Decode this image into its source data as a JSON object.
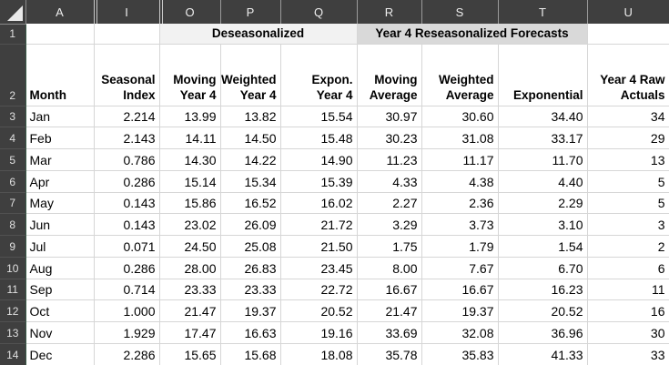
{
  "app": "Excel worksheet grid",
  "colors": {
    "header_bg": "#3f3f3f",
    "header_text": "#ededed",
    "band_deseasonalized_bg": "#f2f2f2",
    "band_reseasonalized_bg": "#d9d9d9",
    "gridline": "#d6d6d6",
    "row_header_accent_edge": "#3a5b48"
  },
  "grid": {
    "column_letters": [
      "A",
      "I",
      "O",
      "P",
      "Q",
      "R",
      "S",
      "T",
      "U"
    ],
    "hidden_columns_indicator_before": [
      "I",
      "O"
    ],
    "row_numbers": [
      "1",
      "2"
    ]
  },
  "bands": {
    "deseasonalized": {
      "label": "Deseasonalized",
      "span": [
        "O",
        "P",
        "Q"
      ]
    },
    "reseasonalized": {
      "label": "Year 4 Reseasonalized Forecasts",
      "span": [
        "R",
        "S",
        "T"
      ]
    }
  },
  "column_headers": [
    "Month",
    "Seasonal\nIndex",
    "Moving\nYear 4",
    "Weighted\nYear 4",
    "Expon.\nYear 4",
    "Moving\nAverage",
    "Weighted\nAverage",
    "Exponential",
    "Year 4 Raw\nActuals"
  ],
  "rows": [
    {
      "row": "3",
      "cells": [
        "Jan",
        "2.214",
        "13.99",
        "13.82",
        "15.54",
        "30.97",
        "30.60",
        "34.40",
        "34"
      ]
    },
    {
      "row": "4",
      "cells": [
        "Feb",
        "2.143",
        "14.11",
        "14.50",
        "15.48",
        "30.23",
        "31.08",
        "33.17",
        "29"
      ]
    },
    {
      "row": "5",
      "cells": [
        "Mar",
        "0.786",
        "14.30",
        "14.22",
        "14.90",
        "11.23",
        "11.17",
        "11.70",
        "13"
      ]
    },
    {
      "row": "6",
      "cells": [
        "Apr",
        "0.286",
        "15.14",
        "15.34",
        "15.39",
        "4.33",
        "4.38",
        "4.40",
        "5"
      ]
    },
    {
      "row": "7",
      "cells": [
        "May",
        "0.143",
        "15.86",
        "16.52",
        "16.02",
        "2.27",
        "2.36",
        "2.29",
        "5"
      ]
    },
    {
      "row": "8",
      "cells": [
        "Jun",
        "0.143",
        "23.02",
        "26.09",
        "21.72",
        "3.29",
        "3.73",
        "3.10",
        "3"
      ]
    },
    {
      "row": "9",
      "cells": [
        "Jul",
        "0.071",
        "24.50",
        "25.08",
        "21.50",
        "1.75",
        "1.79",
        "1.54",
        "2"
      ]
    },
    {
      "row": "10",
      "cells": [
        "Aug",
        "0.286",
        "28.00",
        "26.83",
        "23.45",
        "8.00",
        "7.67",
        "6.70",
        "6"
      ]
    },
    {
      "row": "11",
      "cells": [
        "Sep",
        "0.714",
        "23.33",
        "23.33",
        "22.72",
        "16.67",
        "16.67",
        "16.23",
        "11"
      ]
    },
    {
      "row": "12",
      "cells": [
        "Oct",
        "1.000",
        "21.47",
        "19.37",
        "20.52",
        "21.47",
        "19.37",
        "20.52",
        "16"
      ]
    },
    {
      "row": "13",
      "cells": [
        "Nov",
        "1.929",
        "17.47",
        "16.63",
        "19.16",
        "33.69",
        "32.08",
        "36.96",
        "30"
      ]
    },
    {
      "row": "14",
      "cells": [
        "Dec",
        "2.286",
        "15.65",
        "15.68",
        "18.08",
        "35.78",
        "35.83",
        "41.33",
        "33"
      ]
    }
  ]
}
